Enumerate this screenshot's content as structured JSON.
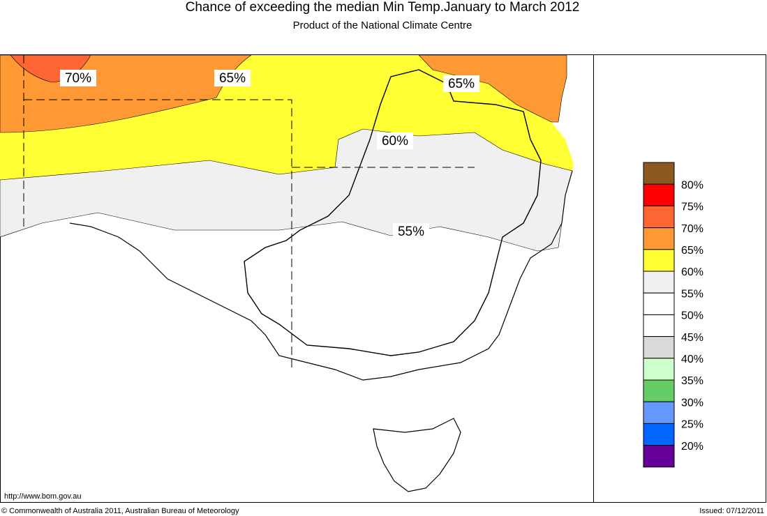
{
  "header": {
    "title": "Chance of exceeding the median Min Temp.January to March 2012",
    "subtitle": "Product of the National Climate Centre"
  },
  "map": {
    "contour_labels": [
      "70%",
      "65%",
      "65%",
      "60%",
      "55%"
    ]
  },
  "legend": {
    "colors": [
      "#8c5a1e",
      "#ff0000",
      "#ff6633",
      "#ff9933",
      "#ffff33",
      "#f0f0f0",
      "#ffffff",
      "#ffffff",
      "#d9d9d9",
      "#ccffcc",
      "#66cc66",
      "#6699ff",
      "#0066ff",
      "#660099"
    ],
    "labels": [
      "80%",
      "75%",
      "70%",
      "65%",
      "60%",
      "55%",
      "50%",
      "45%",
      "40%",
      "35%",
      "30%",
      "25%",
      "20%"
    ]
  },
  "footer": {
    "url": "http://www.bom.gov.au",
    "copyright": "© Commonwealth of Australia 2011, Australian Bureau of Meteorology",
    "issued": "Issued: 07/12/2011"
  }
}
